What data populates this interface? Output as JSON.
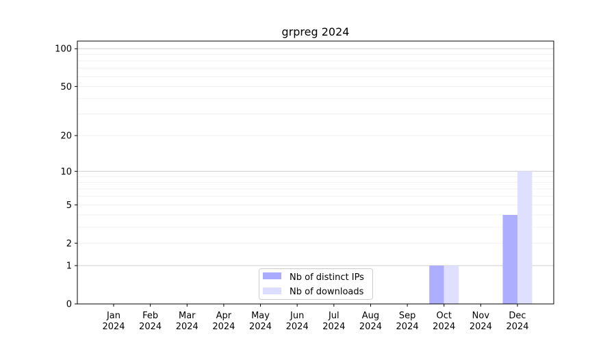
{
  "chart_data": {
    "type": "bar",
    "title": "grpreg 2024",
    "xlabel": "",
    "ylabel": "",
    "y_scale": "log10(1+y)",
    "ylim": [
      0,
      115
    ],
    "y_ticks": [
      0,
      1,
      2,
      5,
      10,
      20,
      50,
      100
    ],
    "categories": [
      "Jan\n2024",
      "Feb\n2024",
      "Mar\n2024",
      "Apr\n2024",
      "May\n2024",
      "Jun\n2024",
      "Jul\n2024",
      "Aug\n2024",
      "Sep\n2024",
      "Oct\n2024",
      "Nov\n2024",
      "Dec\n2024"
    ],
    "series": [
      {
        "name": "Nb of distinct IPs",
        "color": "#aaaaff",
        "values": [
          0,
          0,
          0,
          0,
          0,
          0,
          0,
          0,
          0,
          1,
          0,
          4
        ]
      },
      {
        "name": "Nb of downloads",
        "color": "#ddddff",
        "values": [
          0,
          0,
          0,
          0,
          0,
          0,
          0,
          0,
          0,
          1,
          0,
          10
        ]
      }
    ],
    "grid": true,
    "legend": "bottom-center"
  }
}
